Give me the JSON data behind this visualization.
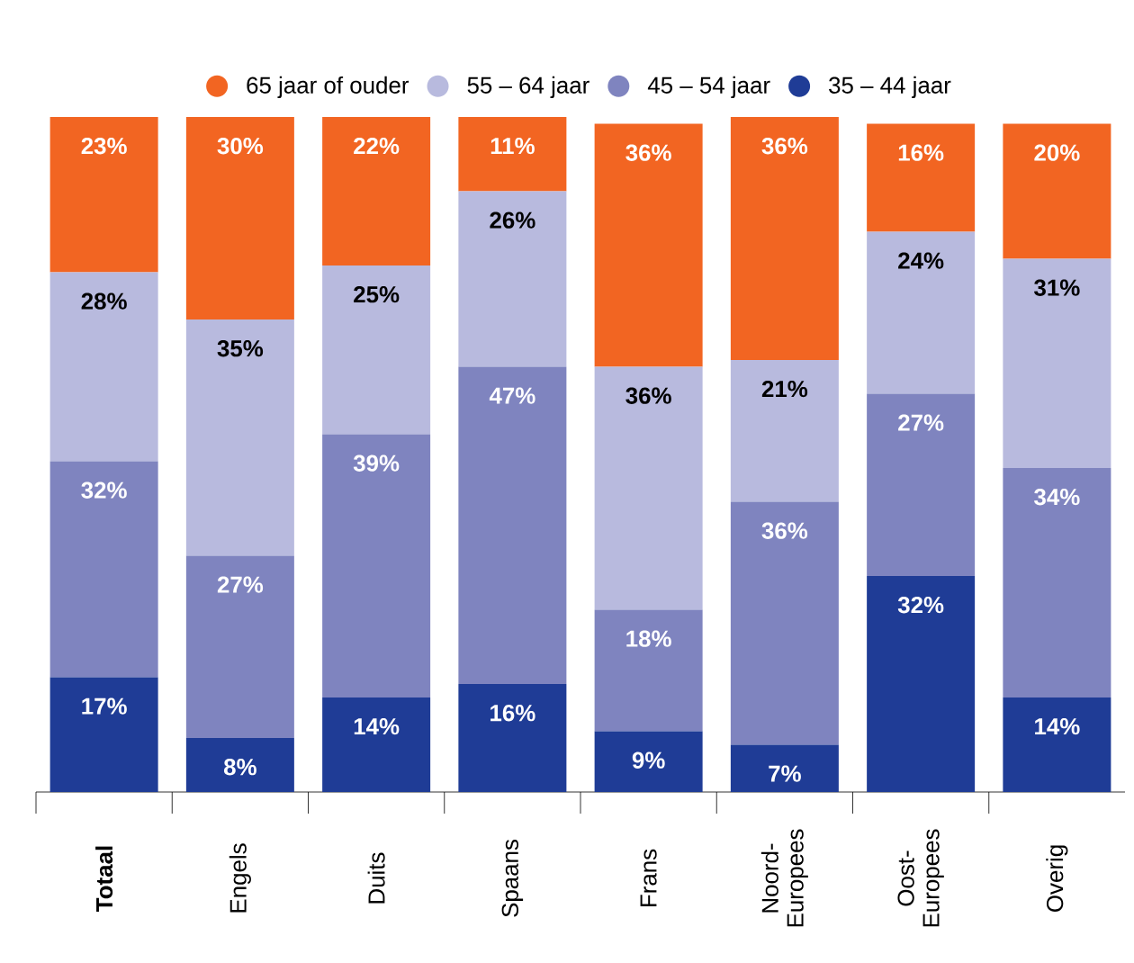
{
  "chart_data": {
    "type": "bar",
    "stacked": true,
    "legend": "top",
    "categories": [
      "**Totaal**",
      "Engels",
      "Duits",
      "Spaans",
      "Frans",
      "Noord-Europees",
      "Oost-Europees",
      "Overig"
    ],
    "series": [
      {
        "name": "35 – 44 jaar",
        "color": "#1f3c96",
        "values": [
          17,
          8,
          14,
          16,
          9,
          7,
          32,
          14
        ],
        "value_labels": [
          "17%",
          "8%",
          "14%",
          "16%",
          "9%",
          "7%",
          "32%",
          "14%"
        ]
      },
      {
        "name": "45 – 54 jaar",
        "color": "#7f84bf",
        "values": [
          32,
          27,
          39,
          47,
          18,
          36,
          27,
          34
        ],
        "value_labels": [
          "32%",
          "27%",
          "39%",
          "47%",
          "18%",
          "36%",
          "27%",
          "34%"
        ]
      },
      {
        "name": "55 – 64 jaar",
        "color": "#b8bade",
        "values": [
          28,
          35,
          25,
          26,
          36,
          21,
          24,
          31
        ],
        "value_labels": [
          "28%",
          "35%",
          "25%",
          "26%",
          "36%",
          "21%",
          "24%",
          "31%"
        ]
      },
      {
        "name": "65 jaar of ouder",
        "color": "#f26522",
        "values": [
          23,
          30,
          22,
          11,
          36,
          36,
          16,
          20
        ],
        "value_labels": [
          "23%",
          "30%",
          "22%",
          "11%",
          "36%",
          "36%",
          "16%",
          "20%"
        ]
      }
    ]
  }
}
